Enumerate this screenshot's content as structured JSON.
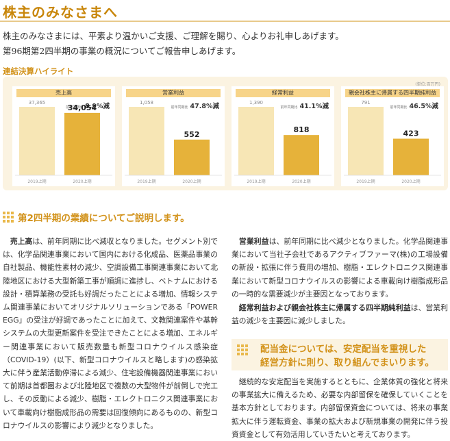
{
  "header": {
    "title": "株主のみなさまへ",
    "intro_line1": "株主のみなさまには、平素より温かいご支援、ご理解を賜り、心よりお礼申しあげます。",
    "intro_line2": "第96期第2四半期の事業の概況についてご報告申しあげます。"
  },
  "highlights": {
    "heading": "連結決算ハイライト",
    "note": "(単位:百万円)",
    "change_prefix": "前年同期比",
    "cards": [
      {
        "label": "売上高",
        "change": "8.9%減"
      },
      {
        "label": "営業利益",
        "change": "47.8%減"
      },
      {
        "label": "経常利益",
        "change": "41.1%減"
      },
      {
        "label": "親会社株主に帰属する四半期純利益",
        "change": "46.5%減"
      }
    ]
  },
  "chart_data": [
    {
      "type": "bar",
      "title": "売上高",
      "categories": [
        "2019上期",
        "2020上期"
      ],
      "values": [
        37365,
        34054
      ],
      "value_labels": [
        "37,365",
        "34,054"
      ]
    },
    {
      "type": "bar",
      "title": "営業利益",
      "categories": [
        "2019上期",
        "2020上期"
      ],
      "values": [
        1058,
        552
      ],
      "value_labels": [
        "1,058",
        "552"
      ]
    },
    {
      "type": "bar",
      "title": "経常利益",
      "categories": [
        "2019上期",
        "2020上期"
      ],
      "values": [
        1390,
        818
      ],
      "value_labels": [
        "1,390",
        "818"
      ]
    },
    {
      "type": "bar",
      "title": "親会社株主に帰属する四半期純利益",
      "categories": [
        "2019上期",
        "2020上期"
      ],
      "values": [
        791,
        423
      ],
      "value_labels": [
        "791",
        "423"
      ]
    }
  ],
  "section": {
    "title": "第2四半期の業績についてご説明します。",
    "left_lead": "売上高",
    "left_text": "は、前年同期に比べ減収となりました。セグメント別では、化学品関連事業において国内における化成品、医薬品事業の自社製品、機能性素材の減少、空調設備工事関連事業において北陸地区における大型新築工事が順調に進捗し、ベトナムにおける設計・積算業務の受託も好調だったことによる増加、情報システム関連事業においてオリジナルソリューションである「POWER EGG」の受注が好調であったことに加えて、文教関連案件や基幹システムの大型更新案件を受注できたことによる増加、エネルギー関連事業において販売数量も新型コロナウイルス感染症（COVID-19）(以下、新型コロナウイルスと略します)の感染拡大に伴う産業活動停滞による減少、住宅設備機器関連事業において前期は首都圏および北陸地区で複数の大型物件が前倒しで完工し、その反動による減少、樹脂・エレクトロニクス関連事業において車載向け樹脂成形品の需要は回復傾向にあるものの、新型コロナウイルスの影響により減少となりました。",
    "right_p1_lead": "営業利益",
    "right_p1_text": "は、前年同期に比べ減少となりました。化学品関連事業において当社子会社であるアクティブファーマ(株)の工場設備の新設・拡張に伴う費用の増加、樹脂・エレクトロニクス関連事業において新型コロナウイルスの影響による車載向け樹脂成形品の一時的な需要減少が主要因となっております。",
    "right_p2_lead": "経常利益および親会社株主に帰属する四半期純利益",
    "right_p2_text": "は、営業利益の減少を主要因に減少しました。"
  },
  "dividend": {
    "title_line1": "配当金については、安定配当を重視した",
    "title_line2": "経営方針に則り、取り組んでまいります。",
    "text": "継続的な安定配当を実施するとともに、企業体質の強化と将来の事業拡大に備えるため、必要な内部留保を確保していくことを基本方針としております。内部留保資金については、将来の事業拡大に伴う運転資金、事業の拡大および新規事業の開発に伴う投資資金として有効活用していきたいと考えております。"
  }
}
